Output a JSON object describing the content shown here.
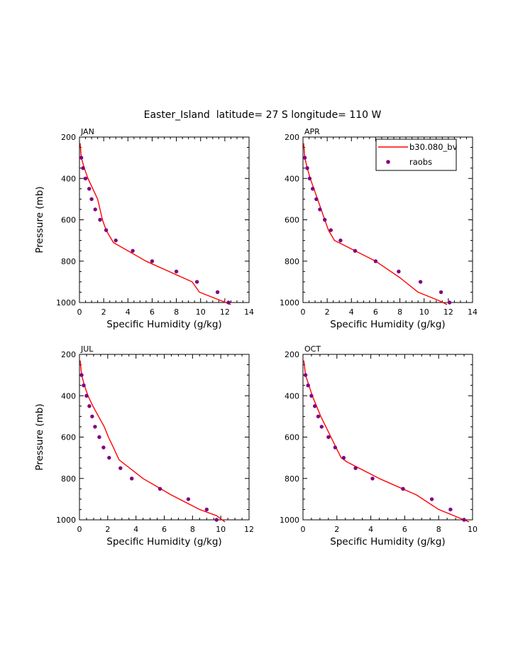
{
  "figure": {
    "title": "Easter_Island  latitude= 27 S longitude= 110 W"
  },
  "colors": {
    "model": "#ff0000",
    "obs": "#800080",
    "axis": "#000000"
  },
  "legend": {
    "position": "top-right of APR panel",
    "model_label": "b30.080_bv",
    "obs_label": "raobs"
  },
  "chart_data": [
    {
      "type": "line",
      "month": "JAN",
      "xlabel": "Specific Humidity (g/kg)",
      "ylabel": "Pressure (mb)",
      "xlim": [
        0,
        14
      ],
      "ylim": [
        1000,
        200
      ],
      "x_ticks": [
        0,
        2,
        4,
        6,
        8,
        10,
        12,
        14
      ],
      "y_ticks": [
        200,
        400,
        600,
        800,
        1000
      ],
      "series": [
        {
          "name": "b30.080_bv",
          "kind": "line",
          "x": [
            0.05,
            0.15,
            0.4,
            0.7,
            1.1,
            1.5,
            1.7,
            1.9,
            2.2,
            2.8,
            5.5,
            9.3,
            9.9,
            12.5
          ],
          "y": [
            230,
            300,
            350,
            400,
            450,
            500,
            550,
            600,
            650,
            710,
            800,
            900,
            950,
            1010
          ]
        },
        {
          "name": "raobs",
          "kind": "scatter",
          "x": [
            0.15,
            0.3,
            0.5,
            0.8,
            1.0,
            1.3,
            1.7,
            2.2,
            3.0,
            4.4,
            6.0,
            8.0,
            9.7,
            11.4,
            12.3
          ],
          "y": [
            300,
            350,
            400,
            450,
            500,
            550,
            600,
            650,
            700,
            750,
            800,
            850,
            900,
            950,
            1000
          ]
        }
      ]
    },
    {
      "type": "line",
      "month": "APR",
      "xlabel": "Specific Humidity (g/kg)",
      "ylabel": "",
      "xlim": [
        0,
        14
      ],
      "ylim": [
        1000,
        200
      ],
      "x_ticks": [
        0,
        2,
        4,
        6,
        8,
        10,
        12,
        14
      ],
      "y_ticks": [
        200,
        400,
        600,
        800,
        1000
      ],
      "series": [
        {
          "name": "b30.080_bv",
          "kind": "line",
          "x": [
            0.05,
            0.15,
            0.35,
            0.6,
            0.9,
            1.2,
            1.5,
            1.8,
            2.1,
            2.6,
            3.3,
            6.0,
            8.0,
            9.5,
            11.2,
            11.9
          ],
          "y": [
            230,
            300,
            350,
            400,
            450,
            500,
            550,
            600,
            650,
            700,
            720,
            800,
            880,
            950,
            990,
            1010
          ]
        },
        {
          "name": "raobs",
          "kind": "scatter",
          "x": [
            0.15,
            0.35,
            0.55,
            0.8,
            1.1,
            1.4,
            1.8,
            2.3,
            3.1,
            4.3,
            6.0,
            7.9,
            9.7,
            11.4,
            12.1
          ],
          "y": [
            300,
            350,
            400,
            450,
            500,
            550,
            600,
            650,
            700,
            750,
            800,
            850,
            900,
            950,
            1000
          ]
        }
      ]
    },
    {
      "type": "line",
      "month": "JUL",
      "xlabel": "Specific Humidity (g/kg)",
      "ylabel": "Pressure (mb)",
      "xlim": [
        0,
        12
      ],
      "ylim": [
        1000,
        200
      ],
      "x_ticks": [
        0,
        2,
        4,
        6,
        8,
        10,
        12
      ],
      "y_ticks": [
        200,
        400,
        600,
        800,
        1000
      ],
      "series": [
        {
          "name": "b30.080_bv",
          "kind": "line",
          "x": [
            0.05,
            0.15,
            0.35,
            0.6,
            0.95,
            1.35,
            1.75,
            2.05,
            2.4,
            2.8,
            4.5,
            6.5,
            8.5,
            9.7,
            10.3
          ],
          "y": [
            230,
            300,
            350,
            400,
            450,
            500,
            550,
            600,
            650,
            710,
            800,
            880,
            950,
            980,
            1010
          ]
        },
        {
          "name": "raobs",
          "kind": "scatter",
          "x": [
            0.15,
            0.3,
            0.5,
            0.7,
            0.9,
            1.1,
            1.4,
            1.7,
            2.1,
            2.9,
            3.7,
            5.7,
            7.7,
            9.0,
            9.7
          ],
          "y": [
            300,
            350,
            400,
            450,
            500,
            550,
            600,
            650,
            700,
            750,
            800,
            850,
            900,
            950,
            1000
          ]
        }
      ]
    },
    {
      "type": "line",
      "month": "OCT",
      "xlabel": "Specific Humidity (g/kg)",
      "ylabel": "",
      "xlim": [
        0,
        10
      ],
      "ylim": [
        1000,
        200
      ],
      "x_ticks": [
        0,
        2,
        4,
        6,
        8,
        10
      ],
      "y_ticks": [
        200,
        400,
        600,
        800,
        1000
      ],
      "series": [
        {
          "name": "b30.080_bv",
          "kind": "line",
          "x": [
            0.05,
            0.15,
            0.35,
            0.55,
            0.8,
            1.05,
            1.35,
            1.65,
            1.95,
            2.25,
            2.6,
            4.5,
            6.7,
            8.0,
            9.5,
            9.8
          ],
          "y": [
            230,
            300,
            350,
            400,
            450,
            500,
            550,
            600,
            650,
            700,
            720,
            800,
            880,
            950,
            1000,
            1010
          ]
        },
        {
          "name": "raobs",
          "kind": "scatter",
          "x": [
            0.15,
            0.3,
            0.5,
            0.7,
            0.9,
            1.1,
            1.5,
            1.9,
            2.4,
            3.1,
            4.1,
            5.9,
            7.6,
            8.7,
            9.5
          ],
          "y": [
            300,
            350,
            400,
            450,
            500,
            550,
            600,
            650,
            700,
            750,
            800,
            850,
            900,
            950,
            1000
          ]
        }
      ]
    }
  ]
}
